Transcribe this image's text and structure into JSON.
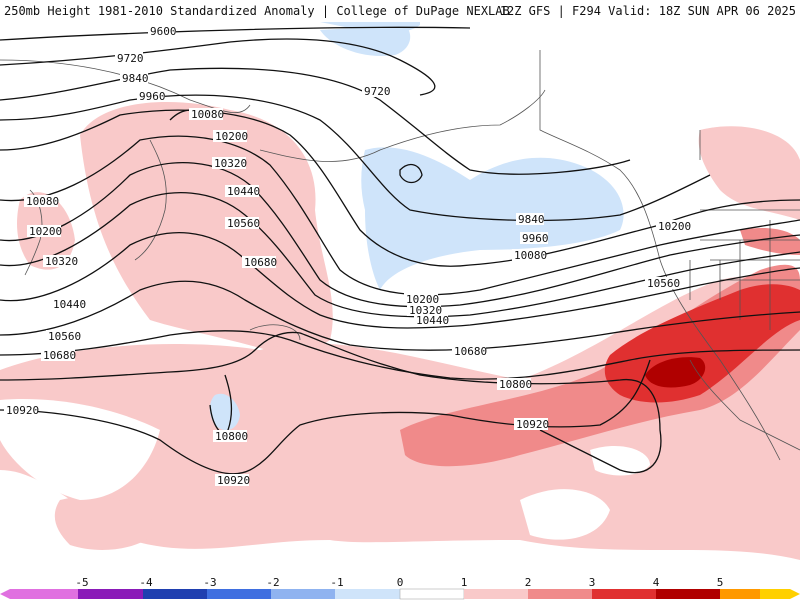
{
  "header": {
    "left": "250mb Height 1981-2010 Standardized Anomaly | College of DuPage NEXLAB",
    "right": "12Z GFS | F294 Valid: 18Z SUN APR 06 2025"
  },
  "contour_labels": [
    "9600",
    "9720",
    "9720",
    "9840",
    "9960",
    "10080",
    "10200",
    "10320",
    "10440",
    "10560",
    "10680",
    "10080",
    "10200",
    "10320",
    "10440",
    "10560",
    "10680",
    "10920",
    "10800",
    "10920",
    "9840",
    "9960",
    "10080",
    "10200",
    "10320",
    "10440",
    "10680",
    "10800",
    "10920",
    "10200",
    "10560"
  ],
  "colorbar": {
    "ticks": [
      "-5",
      "-4",
      "-3",
      "-2",
      "-1",
      "0",
      "1",
      "2",
      "3",
      "4",
      "5"
    ],
    "colors": [
      "#e070e0",
      "#8a1ab8",
      "#1f3fb0",
      "#3f6fe0",
      "#8fb3f0",
      "#cfe4fa",
      "#ffffff",
      "#f9c9c9",
      "#f08a8a",
      "#e03030",
      "#b00000",
      "#ff9900",
      "#ffd000"
    ]
  },
  "map_colors": {
    "positive_1": "#f9c9c9",
    "positive_2": "#f08a8a",
    "positive_3": "#e03030",
    "positive_4": "#b00000",
    "negative_1": "#cfe4fa"
  }
}
